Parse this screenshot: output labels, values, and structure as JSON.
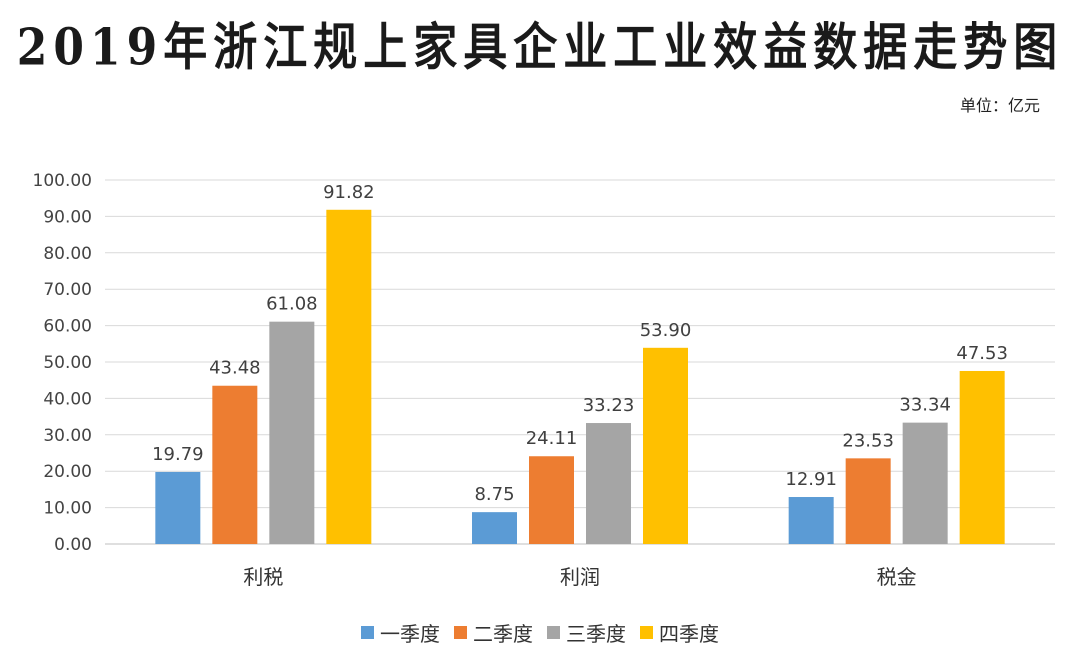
{
  "chart_data": {
    "type": "bar",
    "title": "2019年浙江规上家具企业工业效益数据走势图",
    "unit": "单位：亿元",
    "categories": [
      "利税",
      "利润",
      "税金"
    ],
    "series": [
      {
        "name": "一季度",
        "color": "#5b9bd5",
        "values": [
          19.79,
          8.75,
          12.91
        ]
      },
      {
        "name": "二季度",
        "color": "#ed7d31",
        "values": [
          43.48,
          24.11,
          23.53
        ]
      },
      {
        "name": "三季度",
        "color": "#a5a5a5",
        "values": [
          61.08,
          33.23,
          33.34
        ]
      },
      {
        "name": "四季度",
        "color": "#ffc000",
        "values": [
          91.82,
          53.9,
          47.53
        ]
      }
    ],
    "ylim": [
      0,
      100
    ],
    "yticks": [
      "0.00",
      "10.00",
      "20.00",
      "30.00",
      "40.00",
      "50.00",
      "60.00",
      "70.00",
      "80.00",
      "90.00",
      "100.00"
    ],
    "grid": true,
    "legend": "bottom",
    "xlabel": "",
    "ylabel": ""
  }
}
